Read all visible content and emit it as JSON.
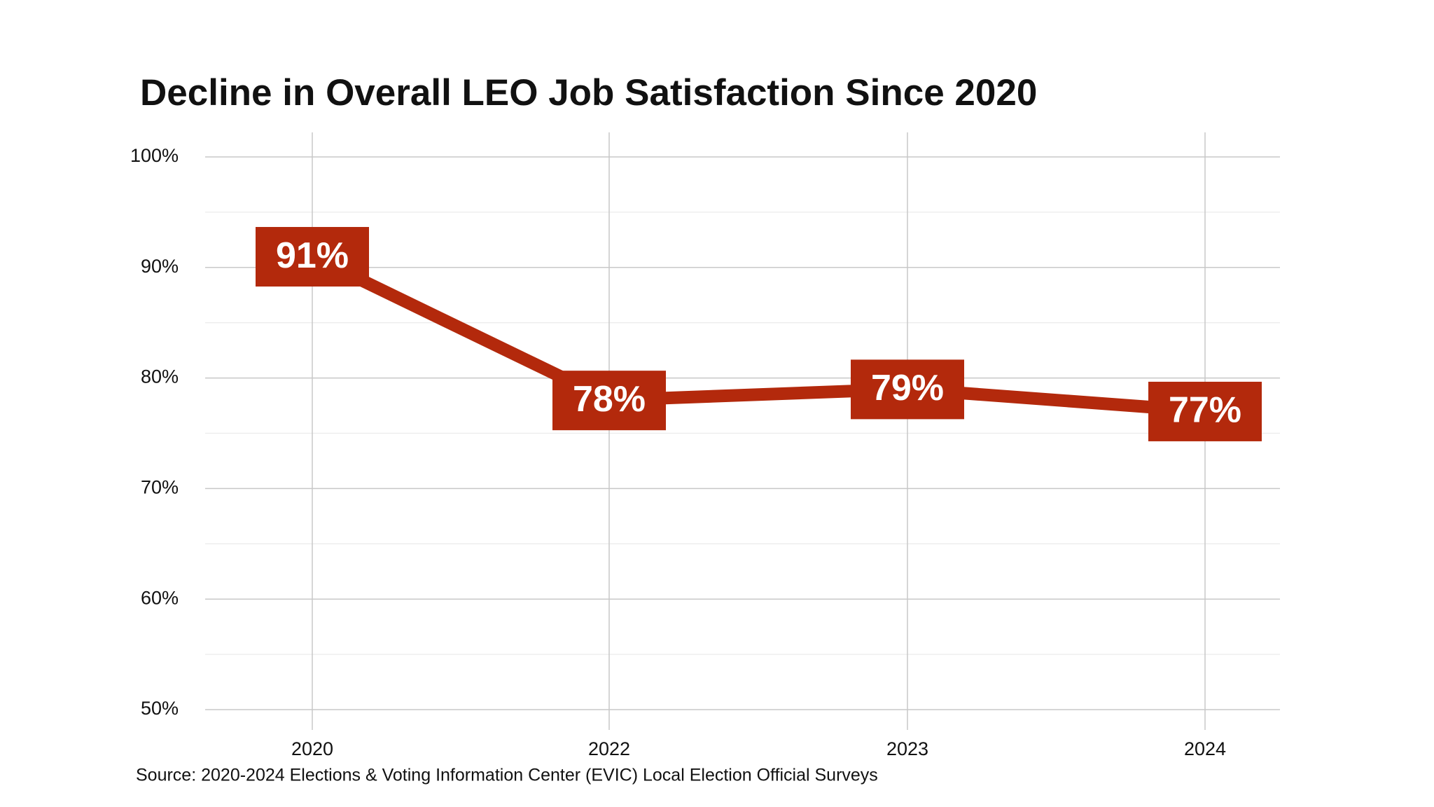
{
  "chart_data": {
    "type": "line",
    "title": "Decline in Overall LEO Job Satisfaction Since 2020",
    "source": "Source: 2020-2024 Elections & Voting Information Center (EVIC) Local Election Official Surveys",
    "categories": [
      "2020",
      "2022",
      "2023",
      "2024"
    ],
    "values": [
      91,
      78,
      79,
      77
    ],
    "value_labels": [
      "91%",
      "78%",
      "79%",
      "77%"
    ],
    "color": "#b3290c",
    "ylim": [
      50,
      100
    ],
    "yticks": [
      {
        "value": 50,
        "label": "50%"
      },
      {
        "value": 60,
        "label": "60%"
      },
      {
        "value": 70,
        "label": "70%"
      },
      {
        "value": 80,
        "label": "80%"
      },
      {
        "value": 90,
        "label": "90%"
      },
      {
        "value": 100,
        "label": "100%"
      }
    ],
    "yminorticks": [
      55,
      65,
      75,
      85,
      95
    ],
    "grid": true
  }
}
